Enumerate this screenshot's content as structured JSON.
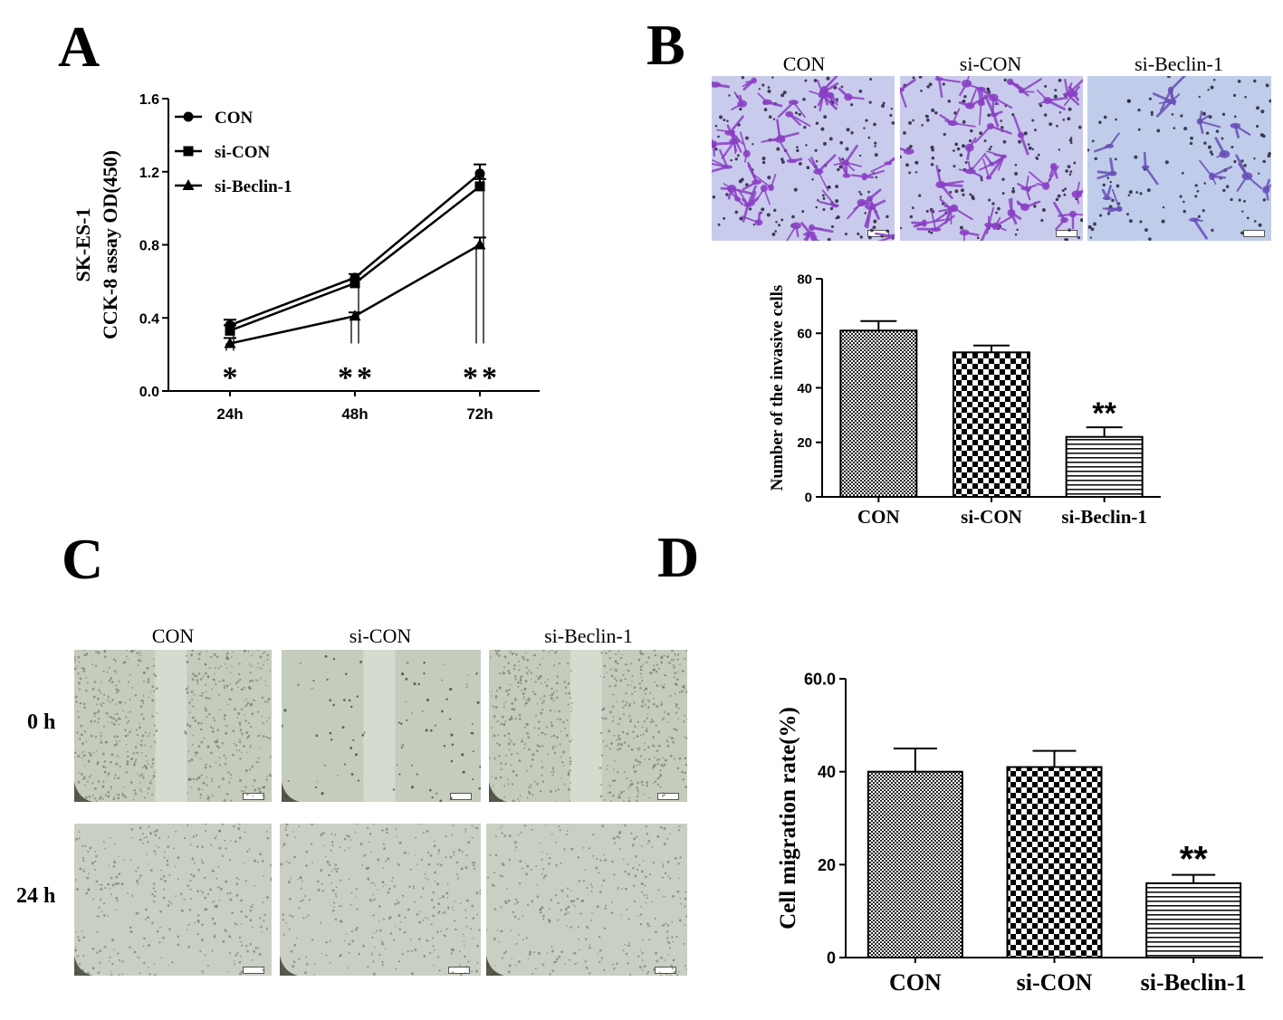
{
  "panels": {
    "A": "A",
    "B": "B",
    "C": "C",
    "D": "D"
  },
  "colors": {
    "axis": "#000000",
    "invasion_stain": "#8a3fc4",
    "invasion_bg": "#c9cbec",
    "wound_bg": "#c4ccbc"
  },
  "panel_B_photos": {
    "labels": [
      "CON",
      "si-CON",
      "si-Beclin-1"
    ]
  },
  "panel_C_photos": {
    "col_labels": [
      "CON",
      "si-CON",
      "si-Beclin-1"
    ],
    "row_labels": [
      "0 h",
      "24 h"
    ]
  },
  "chart_data": [
    {
      "id": "A",
      "type": "line",
      "ylabel_line1": "SK-ES-1",
      "ylabel_line2": "CCK-8 assay OD(450)",
      "categories": [
        "24h",
        "48h",
        "72h"
      ],
      "ylim": [
        0,
        1.6
      ],
      "yticks": [
        "0.0",
        "0.4",
        "0.8",
        "1.2",
        "1.6"
      ],
      "legend_position": "top-left",
      "series": [
        {
          "name": "CON",
          "marker": "circle",
          "values": [
            0.36,
            0.62,
            1.19
          ],
          "errors": [
            0.03,
            0.02,
            0.05
          ]
        },
        {
          "name": "si-CON",
          "marker": "square",
          "values": [
            0.33,
            0.59,
            1.12
          ],
          "errors": [
            0.03,
            0.02,
            0.04
          ]
        },
        {
          "name": "si-Beclin-1",
          "marker": "triangle",
          "values": [
            0.26,
            0.41,
            0.8
          ],
          "errors": [
            0.03,
            0.02,
            0.04
          ]
        }
      ],
      "significance": [
        "*",
        "**",
        "**"
      ]
    },
    {
      "id": "B",
      "type": "bar",
      "ylabel": "Number of the invasive cells",
      "categories": [
        "CON",
        "si-CON",
        "si-Beclin-1"
      ],
      "values": [
        61,
        53,
        22
      ],
      "errors": [
        3.5,
        2.5,
        3.5
      ],
      "ylim": [
        0,
        80
      ],
      "yticks": [
        "0",
        "20",
        "40",
        "60",
        "80"
      ],
      "significance": [
        "",
        "",
        "**"
      ]
    },
    {
      "id": "D",
      "type": "bar",
      "ylabel": "Cell migration rate(%)",
      "categories": [
        "CON",
        "si-CON",
        "si-Beclin-1"
      ],
      "values": [
        40,
        41,
        16
      ],
      "errors": [
        5,
        3.5,
        1.8
      ],
      "ylim": [
        0,
        60
      ],
      "yticks": [
        "0",
        "20",
        "40",
        "60.0"
      ],
      "significance": [
        "",
        "",
        "**"
      ]
    }
  ]
}
